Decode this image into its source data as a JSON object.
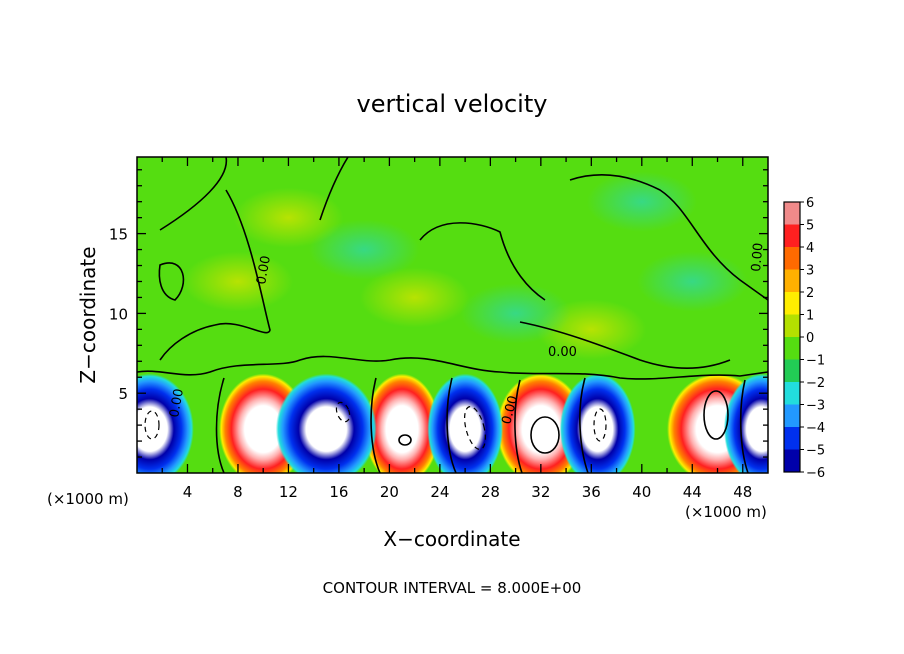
{
  "chart_data": {
    "type": "heatmap",
    "title": "vertical velocity",
    "xlabel": "X−coordinate",
    "ylabel": "Z−coordinate",
    "x_unit_left": "(×1000 m)",
    "x_unit_right": "(×1000 m)",
    "x_ticks": [
      "4",
      "8",
      "12",
      "16",
      "20",
      "24",
      "28",
      "32",
      "36",
      "40",
      "44",
      "48"
    ],
    "y_ticks": [
      "5",
      "10",
      "15"
    ],
    "xlim": [
      0,
      50
    ],
    "ylim": [
      0,
      19.8
    ],
    "colorbar": {
      "range": [
        -6,
        6
      ],
      "labels": [
        "6",
        "5",
        "4",
        "3",
        "2",
        "1",
        "0",
        "−1",
        "−2",
        "−3",
        "−4",
        "−5",
        "−6"
      ],
      "colors": [
        "#f08a8a",
        "#ff2020",
        "#ff6a00",
        "#ffb000",
        "#ffee00",
        "#b4e000",
        "#55dd11",
        "#22cc55",
        "#22dddd",
        "#2299ff",
        "#0030ee",
        "#0000aa",
        "#7700aa"
      ]
    },
    "updraft_cells": [
      {
        "x": 10,
        "w": 7
      },
      {
        "x": 21,
        "w": 6
      },
      {
        "x": 32,
        "w": 7
      },
      {
        "x": 46,
        "w": 8
      }
    ],
    "downdraft_cells": [
      {
        "x": 1,
        "w": 7
      },
      {
        "x": 15,
        "w": 8
      },
      {
        "x": 26,
        "w": 6
      },
      {
        "x": 36.5,
        "w": 6
      },
      {
        "x": 49.5,
        "w": 6
      }
    ],
    "contour_label": "0.00",
    "footer": "CONTOUR INTERVAL = 8.000E+00"
  }
}
